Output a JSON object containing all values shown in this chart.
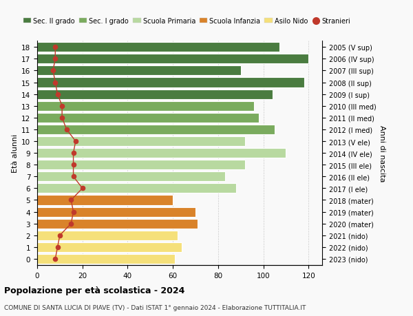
{
  "ages": [
    18,
    17,
    16,
    15,
    14,
    13,
    12,
    11,
    10,
    9,
    8,
    7,
    6,
    5,
    4,
    3,
    2,
    1,
    0
  ],
  "years": [
    "2005 (V sup)",
    "2006 (IV sup)",
    "2007 (III sup)",
    "2008 (II sup)",
    "2009 (I sup)",
    "2010 (III med)",
    "2011 (II med)",
    "2012 (I med)",
    "2013 (V ele)",
    "2014 (IV ele)",
    "2015 (III ele)",
    "2016 (II ele)",
    "2017 (I ele)",
    "2018 (mater)",
    "2019 (mater)",
    "2020 (mater)",
    "2021 (nido)",
    "2022 (nido)",
    "2023 (nido)"
  ],
  "bar_values": [
    107,
    120,
    90,
    118,
    104,
    96,
    98,
    105,
    92,
    110,
    92,
    83,
    88,
    60,
    70,
    71,
    62,
    64,
    61
  ],
  "bar_colors": [
    "#4a7c40",
    "#4a7c40",
    "#4a7c40",
    "#4a7c40",
    "#4a7c40",
    "#7aab5e",
    "#7aab5e",
    "#7aab5e",
    "#b8d9a0",
    "#b8d9a0",
    "#b8d9a0",
    "#b8d9a0",
    "#b8d9a0",
    "#d9832a",
    "#d9832a",
    "#d9832a",
    "#f5e07a",
    "#f5e07a",
    "#f5e07a"
  ],
  "stranieri_values": [
    8,
    8,
    7,
    8,
    9,
    11,
    11,
    13,
    17,
    16,
    16,
    16,
    20,
    15,
    16,
    15,
    10,
    9,
    8
  ],
  "legend_labels": [
    "Sec. II grado",
    "Sec. I grado",
    "Scuola Primaria",
    "Scuola Infanzia",
    "Asilo Nido",
    "Stranieri"
  ],
  "legend_colors": [
    "#4a7c40",
    "#7aab5e",
    "#b8d9a0",
    "#d9832a",
    "#f5e07a",
    "#c0392b"
  ],
  "title_main": "Popolazione per età scolastica - 2024",
  "title_sub": "COMUNE DI SANTA LUCIA DI PIAVE (TV) - Dati ISTAT 1° gennaio 2024 - Elaborazione TUTTITALIA.IT",
  "ylabel_left": "Età alunni",
  "ylabel_right": "Anni di nascita",
  "xlim": [
    0,
    126
  ],
  "xticks": [
    0,
    20,
    40,
    60,
    80,
    100,
    120
  ],
  "bg_color": "#f9f9f9",
  "bar_edge_color": "#ffffff",
  "stranieri_color": "#c0392b",
  "grid_color": "#cccccc"
}
